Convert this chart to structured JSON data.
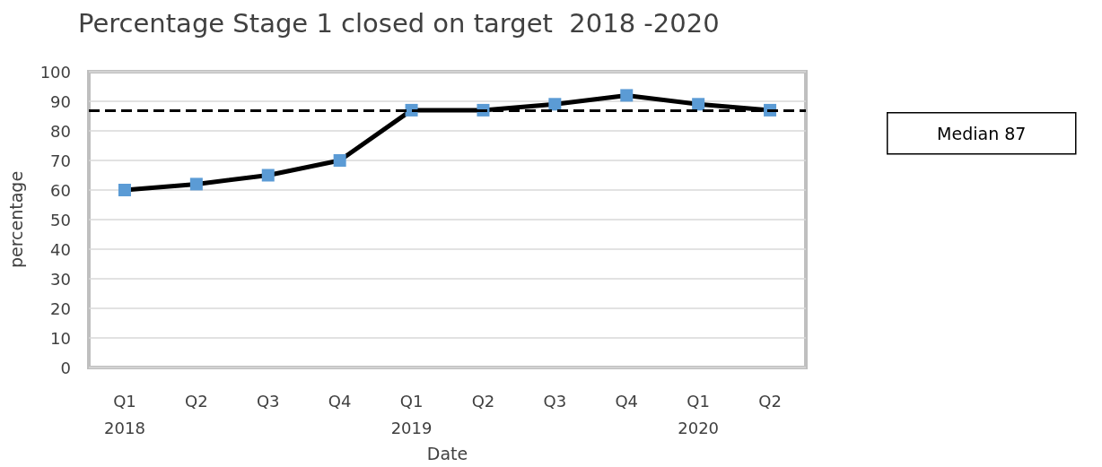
{
  "chart_data": {
    "type": "line",
    "title": "Percentage Stage 1 closed on target  2018 -2020",
    "xlabel": "Date",
    "ylabel": "percentage",
    "categories": [
      "Q1\n2018",
      "Q2",
      "Q3",
      "Q4",
      "Q1\n2019",
      "Q2",
      "Q3",
      "Q4",
      "Q1\n2020",
      "Q2"
    ],
    "series": [
      {
        "color": "#5b9bd5",
        "values": [
          60,
          62,
          65,
          70,
          87,
          87,
          89,
          92,
          89,
          87
        ]
      }
    ],
    "ylim": [
      0,
      100
    ],
    "yticks": [
      0,
      10,
      20,
      30,
      40,
      50,
      60,
      70,
      80,
      90,
      100
    ],
    "grid": "y",
    "marker": "square",
    "line_style": "solid",
    "ref_lines": [
      {
        "axis": "y",
        "value": 87,
        "label": "Median 87",
        "color": "#000000",
        "line_style": "dashed"
      }
    ]
  }
}
